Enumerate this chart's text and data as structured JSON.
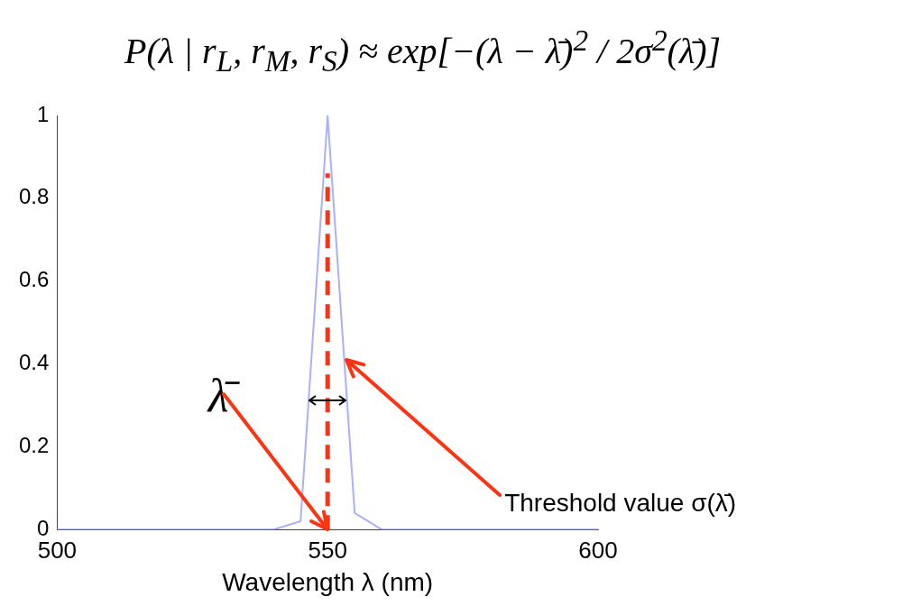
{
  "chart_data": {
    "type": "line",
    "title": "P(λ | r$_{L}$, r$_{M}$, r$_{S}$) ≈ exp[−(λ − λ̄)$^{2}$ / 2σ$^{2}$(λ̄)]",
    "xlabel": "Wavelength λ (nm)",
    "series": [
      {
        "x": [
          500,
          540,
          545,
          550,
          555,
          560,
          600
        ],
        "values": [
          0,
          0,
          0.02,
          1,
          0.04,
          0,
          0
        ],
        "color": "#a8b0ff"
      },
      {
        "x": [
          550,
          550
        ],
        "values": [
          0,
          0.86
        ],
        "color": "#ff3311",
        "line_style": "dashed"
      }
    ],
    "xlim": [
      500,
      600
    ],
    "xticks": [
      500,
      550,
      600
    ],
    "ylim": [
      0,
      1
    ],
    "yticks": [
      0,
      0.2,
      0.4,
      0.6,
      0.8,
      1
    ],
    "grid": false,
    "legend": false,
    "marker": "none",
    "annotations": [
      {
        "text": "λ̄",
        "x": 550,
        "y": 0
      },
      {
        "text": "Threshold value σ(λ̄)",
        "x": 553.5,
        "y": 0.41
      }
    ]
  }
}
